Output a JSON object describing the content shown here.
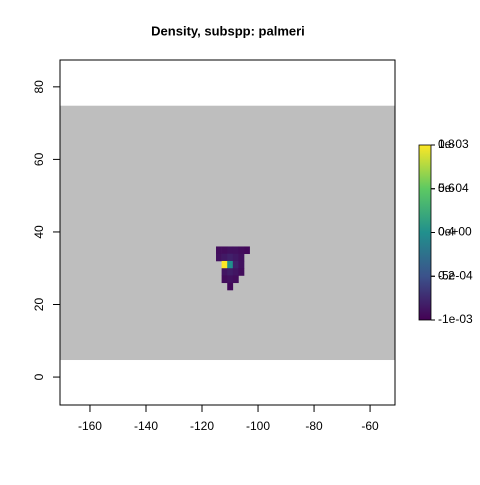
{
  "chart_data": {
    "type": "raster",
    "title": "Density, subspp: palmeri",
    "xlim": [
      -170.7,
      -51.1
    ],
    "ylim": [
      -7.7,
      87.4
    ],
    "xticks": [
      -160,
      -140,
      -120,
      -100,
      -80,
      -60
    ],
    "yticks": [
      0,
      20,
      40,
      60,
      80
    ],
    "extent": {
      "x": [
        -170.7,
        -51.1
      ],
      "y": [
        4.7,
        74.8
      ],
      "color": "#bebebe"
    },
    "cell_size": [
      2,
      2
    ],
    "cells": {
      "x": [
        -115,
        -113,
        -111,
        -109,
        -107,
        -105,
        -115,
        -113,
        -111,
        -109,
        -107,
        -113,
        -111,
        -109,
        -107,
        -113,
        -111,
        -109,
        -107,
        -113,
        -111,
        -109,
        -111
      ],
      "y": [
        34,
        34,
        34,
        34,
        34,
        34,
        32,
        32,
        32,
        32,
        32,
        30,
        30,
        30,
        30,
        28,
        28,
        28,
        28,
        26,
        26,
        26,
        24
      ],
      "values": [
        0.03,
        0.03,
        0.04,
        0.04,
        0.03,
        0.02,
        0.04,
        0.06,
        0.08,
        0.06,
        0.04,
        0.8,
        0.4,
        0.08,
        0.04,
        0.05,
        0.07,
        0.05,
        0.03,
        0.03,
        0.04,
        0.03,
        0.02
      ]
    },
    "colormap": [
      "#440154",
      "#3b528b",
      "#21908d",
      "#5dc962",
      "#fde725"
    ],
    "zlim": [
      0,
      0.8
    ],
    "zticks": [
      0.2,
      0.4,
      0.6,
      0.8
    ],
    "z2lim": [
      -0.001,
      0.001
    ],
    "z2ticks": [
      {
        "value": -0.001,
        "label": "-1e-03"
      },
      {
        "value": -0.0005,
        "label": "-5e-04"
      },
      {
        "value": 0,
        "label": "0e+00"
      },
      {
        "value": 0.0005,
        "label": "5e-04"
      },
      {
        "value": 0.001,
        "label": "1e-03"
      }
    ]
  }
}
